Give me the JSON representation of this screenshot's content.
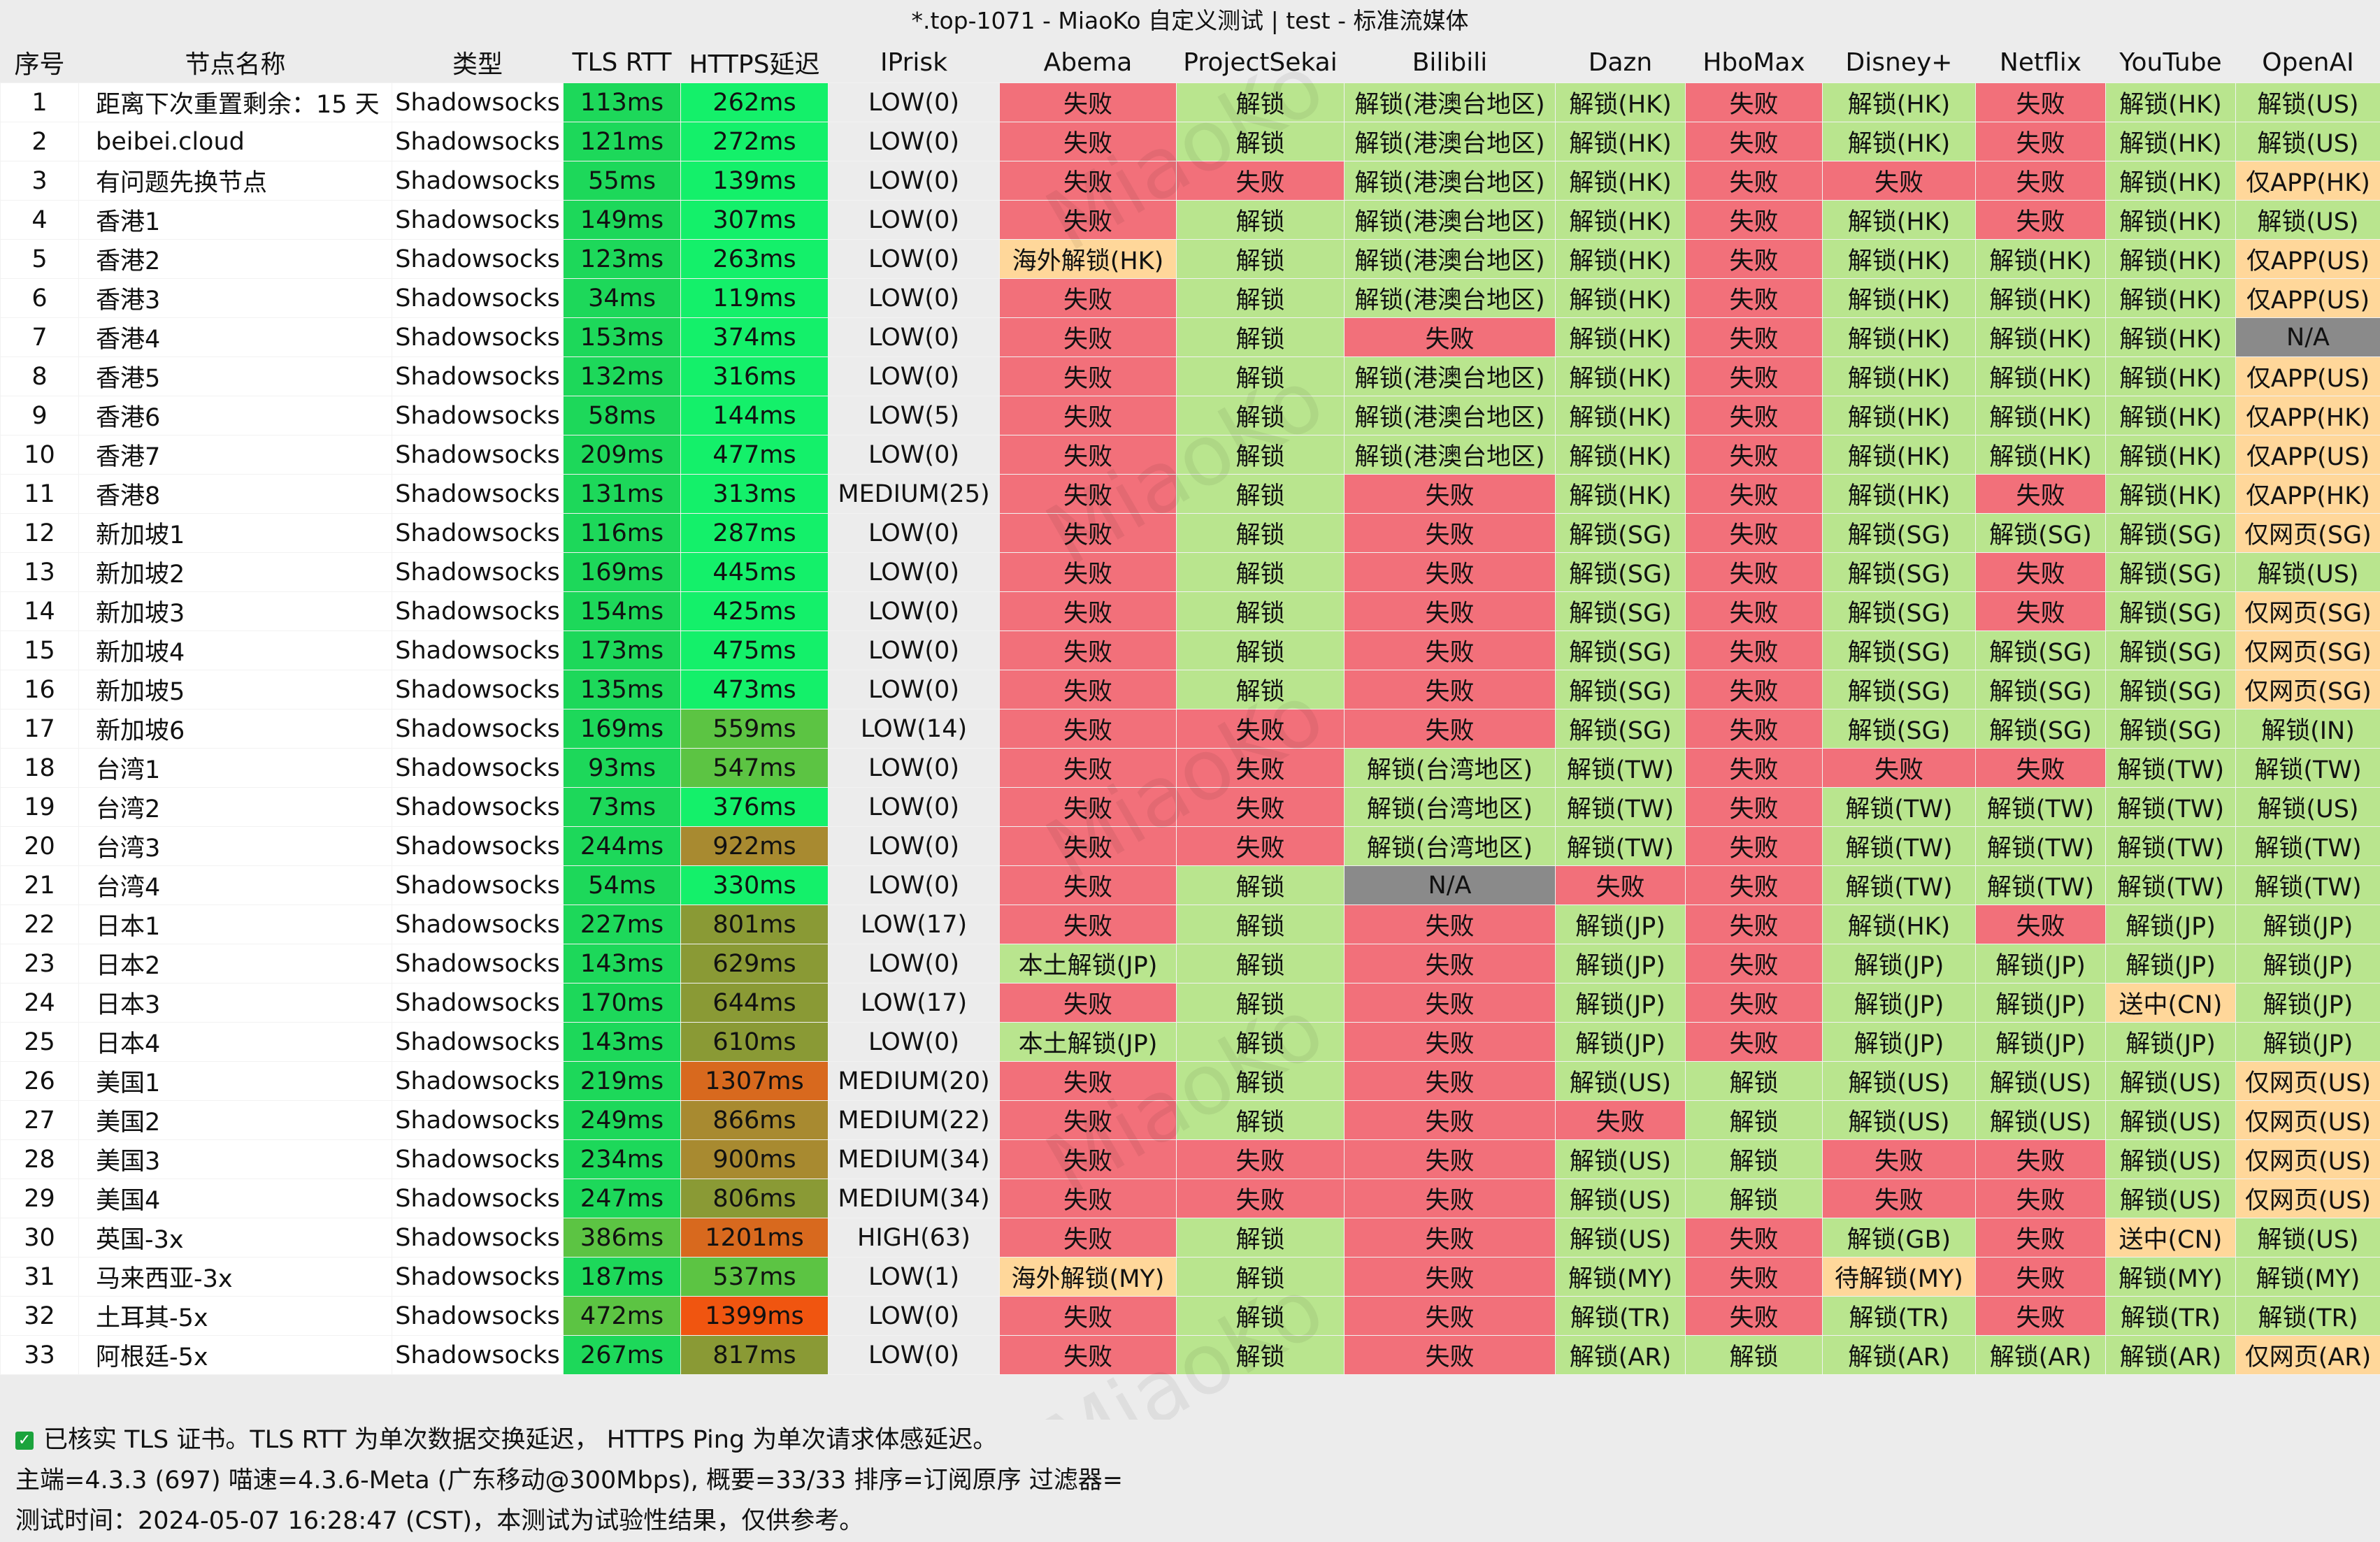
{
  "window": {
    "title": "*.top-1071 - MiaoKo 自定义测试 | test - 标准流媒体"
  },
  "colors": {
    "tls_green": "#1dd85a",
    "https_bright": "#14f06a",
    "https_mid": "#5cc443",
    "https_olive": "#8a9a35",
    "https_brown": "#a88a30",
    "https_orange": "#d8691e",
    "https_red": "#f05510",
    "fail": "#f2707a",
    "unlock": "#b9e58e",
    "partial": "#ffd79a",
    "na": "#8a8a8a"
  },
  "columns": [
    "序号",
    "节点名称",
    "类型",
    "TLS RTT",
    "HTTPS延迟",
    "IPrisk",
    "Abema",
    "ProjectSekai",
    "Bilibili",
    "Dazn",
    "HboMax",
    "Disney+",
    "Netflix",
    "YouTube",
    "OpenAI"
  ],
  "rows": [
    [
      "1",
      "距离下次重置剩余：15 天",
      "Shadowsocks",
      "113ms",
      "262ms",
      "LOW(0)",
      "失败",
      "解锁",
      "解锁(港澳台地区)",
      "解锁(HK)",
      "失败",
      "解锁(HK)",
      "失败",
      "解锁(HK)",
      "解锁(US)"
    ],
    [
      "2",
      "beibei.cloud",
      "Shadowsocks",
      "121ms",
      "272ms",
      "LOW(0)",
      "失败",
      "解锁",
      "解锁(港澳台地区)",
      "解锁(HK)",
      "失败",
      "解锁(HK)",
      "失败",
      "解锁(HK)",
      "解锁(US)"
    ],
    [
      "3",
      "有问题先换节点",
      "Shadowsocks",
      "55ms",
      "139ms",
      "LOW(0)",
      "失败",
      "失败",
      "解锁(港澳台地区)",
      "解锁(HK)",
      "失败",
      "失败",
      "失败",
      "解锁(HK)",
      "仅APP(HK)"
    ],
    [
      "4",
      "香港1",
      "Shadowsocks",
      "149ms",
      "307ms",
      "LOW(0)",
      "失败",
      "解锁",
      "解锁(港澳台地区)",
      "解锁(HK)",
      "失败",
      "解锁(HK)",
      "失败",
      "解锁(HK)",
      "解锁(US)"
    ],
    [
      "5",
      "香港2",
      "Shadowsocks",
      "123ms",
      "263ms",
      "LOW(0)",
      "海外解锁(HK)",
      "解锁",
      "解锁(港澳台地区)",
      "解锁(HK)",
      "失败",
      "解锁(HK)",
      "解锁(HK)",
      "解锁(HK)",
      "仅APP(US)"
    ],
    [
      "6",
      "香港3",
      "Shadowsocks",
      "34ms",
      "119ms",
      "LOW(0)",
      "失败",
      "解锁",
      "解锁(港澳台地区)",
      "解锁(HK)",
      "失败",
      "解锁(HK)",
      "解锁(HK)",
      "解锁(HK)",
      "仅APP(US)"
    ],
    [
      "7",
      "香港4",
      "Shadowsocks",
      "153ms",
      "374ms",
      "LOW(0)",
      "失败",
      "解锁",
      "失败",
      "解锁(HK)",
      "失败",
      "解锁(HK)",
      "解锁(HK)",
      "解锁(HK)",
      "N/A"
    ],
    [
      "8",
      "香港5",
      "Shadowsocks",
      "132ms",
      "316ms",
      "LOW(0)",
      "失败",
      "解锁",
      "解锁(港澳台地区)",
      "解锁(HK)",
      "失败",
      "解锁(HK)",
      "解锁(HK)",
      "解锁(HK)",
      "仅APP(US)"
    ],
    [
      "9",
      "香港6",
      "Shadowsocks",
      "58ms",
      "144ms",
      "LOW(5)",
      "失败",
      "解锁",
      "解锁(港澳台地区)",
      "解锁(HK)",
      "失败",
      "解锁(HK)",
      "解锁(HK)",
      "解锁(HK)",
      "仅APP(HK)"
    ],
    [
      "10",
      "香港7",
      "Shadowsocks",
      "209ms",
      "477ms",
      "LOW(0)",
      "失败",
      "解锁",
      "解锁(港澳台地区)",
      "解锁(HK)",
      "失败",
      "解锁(HK)",
      "解锁(HK)",
      "解锁(HK)",
      "仅APP(US)"
    ],
    [
      "11",
      "香港8",
      "Shadowsocks",
      "131ms",
      "313ms",
      "MEDIUM(25)",
      "失败",
      "解锁",
      "失败",
      "解锁(HK)",
      "失败",
      "解锁(HK)",
      "失败",
      "解锁(HK)",
      "仅APP(HK)"
    ],
    [
      "12",
      "新加坡1",
      "Shadowsocks",
      "116ms",
      "287ms",
      "LOW(0)",
      "失败",
      "解锁",
      "失败",
      "解锁(SG)",
      "失败",
      "解锁(SG)",
      "解锁(SG)",
      "解锁(SG)",
      "仅网页(SG)"
    ],
    [
      "13",
      "新加坡2",
      "Shadowsocks",
      "169ms",
      "445ms",
      "LOW(0)",
      "失败",
      "解锁",
      "失败",
      "解锁(SG)",
      "失败",
      "解锁(SG)",
      "失败",
      "解锁(SG)",
      "解锁(US)"
    ],
    [
      "14",
      "新加坡3",
      "Shadowsocks",
      "154ms",
      "425ms",
      "LOW(0)",
      "失败",
      "解锁",
      "失败",
      "解锁(SG)",
      "失败",
      "解锁(SG)",
      "失败",
      "解锁(SG)",
      "仅网页(SG)"
    ],
    [
      "15",
      "新加坡4",
      "Shadowsocks",
      "173ms",
      "475ms",
      "LOW(0)",
      "失败",
      "解锁",
      "失败",
      "解锁(SG)",
      "失败",
      "解锁(SG)",
      "解锁(SG)",
      "解锁(SG)",
      "仅网页(SG)"
    ],
    [
      "16",
      "新加坡5",
      "Shadowsocks",
      "135ms",
      "473ms",
      "LOW(0)",
      "失败",
      "解锁",
      "失败",
      "解锁(SG)",
      "失败",
      "解锁(SG)",
      "解锁(SG)",
      "解锁(SG)",
      "仅网页(SG)"
    ],
    [
      "17",
      "新加坡6",
      "Shadowsocks",
      "169ms",
      "559ms",
      "LOW(14)",
      "失败",
      "失败",
      "失败",
      "解锁(SG)",
      "失败",
      "解锁(SG)",
      "解锁(SG)",
      "解锁(SG)",
      "解锁(IN)"
    ],
    [
      "18",
      "台湾1",
      "Shadowsocks",
      "93ms",
      "547ms",
      "LOW(0)",
      "失败",
      "失败",
      "解锁(台湾地区)",
      "解锁(TW)",
      "失败",
      "失败",
      "失败",
      "解锁(TW)",
      "解锁(TW)"
    ],
    [
      "19",
      "台湾2",
      "Shadowsocks",
      "73ms",
      "376ms",
      "LOW(0)",
      "失败",
      "失败",
      "解锁(台湾地区)",
      "解锁(TW)",
      "失败",
      "解锁(TW)",
      "解锁(TW)",
      "解锁(TW)",
      "解锁(US)"
    ],
    [
      "20",
      "台湾3",
      "Shadowsocks",
      "244ms",
      "922ms",
      "LOW(0)",
      "失败",
      "失败",
      "解锁(台湾地区)",
      "解锁(TW)",
      "失败",
      "解锁(TW)",
      "解锁(TW)",
      "解锁(TW)",
      "解锁(TW)"
    ],
    [
      "21",
      "台湾4",
      "Shadowsocks",
      "54ms",
      "330ms",
      "LOW(0)",
      "失败",
      "解锁",
      "N/A",
      "失败",
      "失败",
      "解锁(TW)",
      "解锁(TW)",
      "解锁(TW)",
      "解锁(TW)"
    ],
    [
      "22",
      "日本1",
      "Shadowsocks",
      "227ms",
      "801ms",
      "LOW(17)",
      "失败",
      "解锁",
      "失败",
      "解锁(JP)",
      "失败",
      "解锁(HK)",
      "失败",
      "解锁(JP)",
      "解锁(JP)"
    ],
    [
      "23",
      "日本2",
      "Shadowsocks",
      "143ms",
      "629ms",
      "LOW(0)",
      "本土解锁(JP)",
      "解锁",
      "失败",
      "解锁(JP)",
      "失败",
      "解锁(JP)",
      "解锁(JP)",
      "解锁(JP)",
      "解锁(JP)"
    ],
    [
      "24",
      "日本3",
      "Shadowsocks",
      "170ms",
      "644ms",
      "LOW(17)",
      "失败",
      "解锁",
      "失败",
      "解锁(JP)",
      "失败",
      "解锁(JP)",
      "解锁(JP)",
      "送中(CN)",
      "解锁(JP)"
    ],
    [
      "25",
      "日本4",
      "Shadowsocks",
      "143ms",
      "610ms",
      "LOW(0)",
      "本土解锁(JP)",
      "解锁",
      "失败",
      "解锁(JP)",
      "失败",
      "解锁(JP)",
      "解锁(JP)",
      "解锁(JP)",
      "解锁(JP)"
    ],
    [
      "26",
      "美国1",
      "Shadowsocks",
      "219ms",
      "1307ms",
      "MEDIUM(20)",
      "失败",
      "解锁",
      "失败",
      "解锁(US)",
      "解锁",
      "解锁(US)",
      "解锁(US)",
      "解锁(US)",
      "仅网页(US)"
    ],
    [
      "27",
      "美国2",
      "Shadowsocks",
      "249ms",
      "866ms",
      "MEDIUM(22)",
      "失败",
      "解锁",
      "失败",
      "失败",
      "解锁",
      "解锁(US)",
      "解锁(US)",
      "解锁(US)",
      "仅网页(US)"
    ],
    [
      "28",
      "美国3",
      "Shadowsocks",
      "234ms",
      "900ms",
      "MEDIUM(34)",
      "失败",
      "失败",
      "失败",
      "解锁(US)",
      "解锁",
      "失败",
      "失败",
      "解锁(US)",
      "仅网页(US)"
    ],
    [
      "29",
      "美国4",
      "Shadowsocks",
      "247ms",
      "806ms",
      "MEDIUM(34)",
      "失败",
      "失败",
      "失败",
      "解锁(US)",
      "解锁",
      "失败",
      "失败",
      "解锁(US)",
      "仅网页(US)"
    ],
    [
      "30",
      "英国-3x",
      "Shadowsocks",
      "386ms",
      "1201ms",
      "HIGH(63)",
      "失败",
      "解锁",
      "失败",
      "解锁(US)",
      "失败",
      "解锁(GB)",
      "失败",
      "送中(CN)",
      "解锁(US)"
    ],
    [
      "31",
      "马来西亚-3x",
      "Shadowsocks",
      "187ms",
      "537ms",
      "LOW(1)",
      "海外解锁(MY)",
      "解锁",
      "失败",
      "解锁(MY)",
      "失败",
      "待解锁(MY)",
      "失败",
      "解锁(MY)",
      "解锁(MY)"
    ],
    [
      "32",
      "土耳其-5x",
      "Shadowsocks",
      "472ms",
      "1399ms",
      "LOW(0)",
      "失败",
      "解锁",
      "失败",
      "解锁(TR)",
      "失败",
      "解锁(TR)",
      "失败",
      "解锁(TR)",
      "解锁(TR)"
    ],
    [
      "33",
      "阿根廷-5x",
      "Shadowsocks",
      "267ms",
      "817ms",
      "LOW(0)",
      "失败",
      "解锁",
      "失败",
      "解锁(AR)",
      "解锁",
      "解锁(AR)",
      "解锁(AR)",
      "解锁(AR)",
      "仅网页(AR)"
    ]
  ],
  "footer": {
    "line1": "已核实 TLS 证书。TLS RTT 为单次数据交换延迟， HTTPS Ping 为单次请求体感延迟。",
    "line2": "主端=4.3.3 (697) 喵速=4.3.6-Meta (广东移动@300Mbps), 概要=33/33 排序=订阅原序 过滤器=",
    "line3": "测试时间：2024-05-07 16:28:47 (CST)，本测试为试验性结果，仅供参考。"
  },
  "watermark": "MiaoKo"
}
